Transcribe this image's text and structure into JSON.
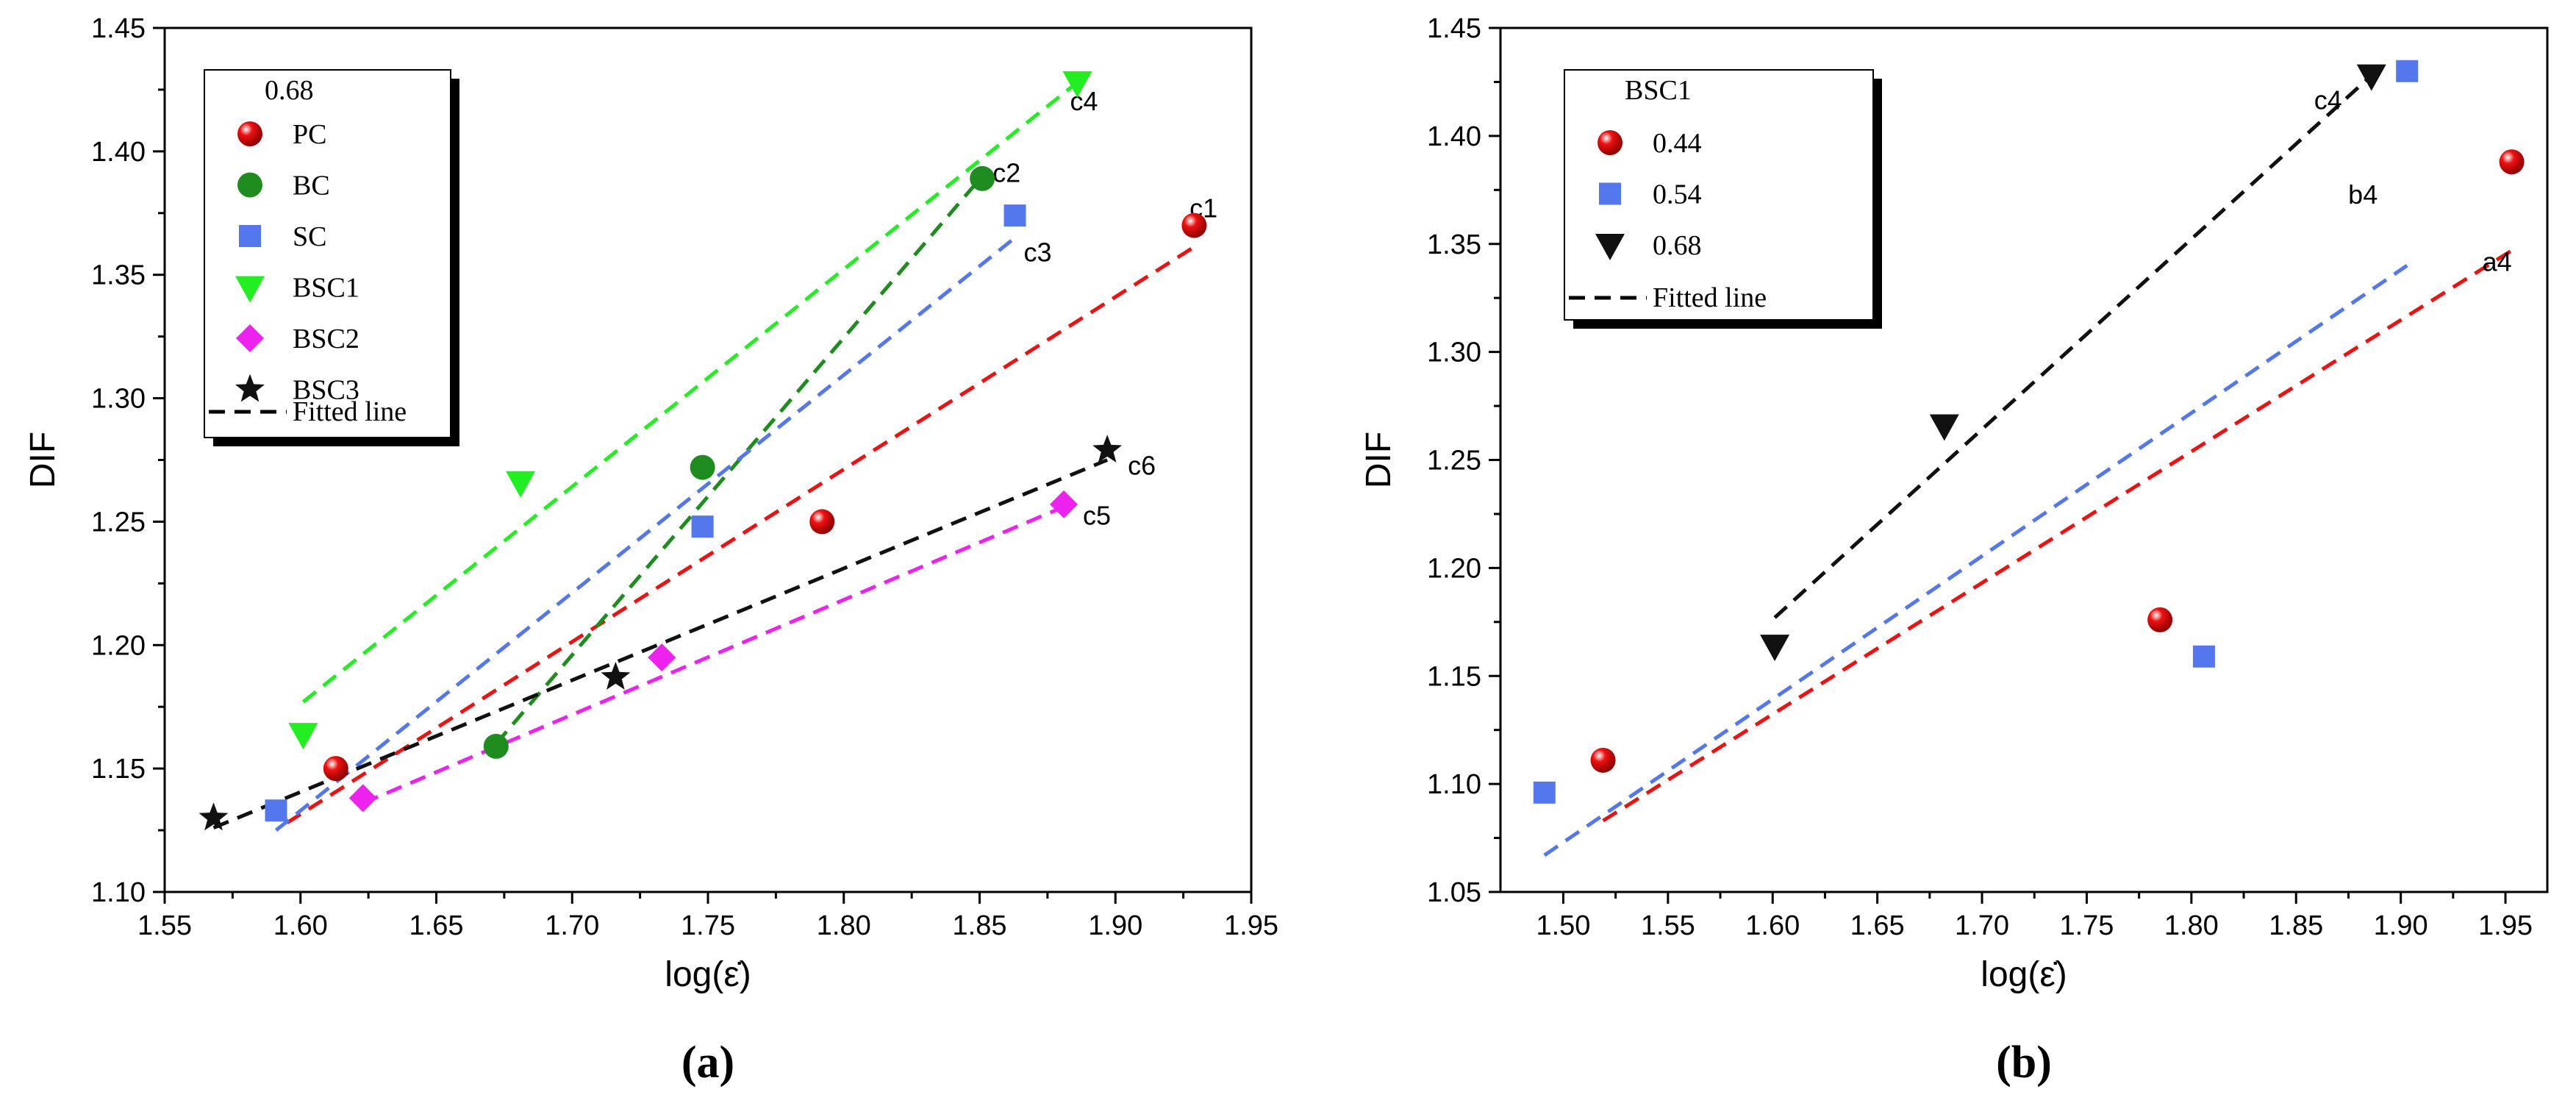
{
  "chart_data": [
    {
      "type": "scatter",
      "panel_label": "(a)",
      "xlabel": "log(ε̇)",
      "ylabel": "DIF",
      "xlim": [
        1.55,
        1.95
      ],
      "ylim": [
        1.1,
        1.45
      ],
      "xticks": [
        "1.55",
        "1.60",
        "1.65",
        "1.70",
        "1.75",
        "1.80",
        "1.85",
        "1.90",
        "1.95"
      ],
      "yticks": [
        "1.10",
        "1.15",
        "1.20",
        "1.25",
        "1.30",
        "1.35",
        "1.40",
        "1.45"
      ],
      "legend_title": "0.68",
      "legend_position": "top-left",
      "fitted_line_label": "Fitted line",
      "series": [
        {
          "name": "PC",
          "marker": "sphere",
          "color": "#ee1111",
          "points": [
            [
              1.613,
              1.15
            ],
            [
              1.792,
              1.25
            ],
            [
              1.929,
              1.37
            ]
          ],
          "fit": [
            [
              1.595,
              1.128
            ],
            [
              1.93,
              1.362
            ]
          ],
          "fit_label": "c1"
        },
        {
          "name": "BC",
          "marker": "circle",
          "color": "#1e8c1e",
          "points": [
            [
              1.672,
              1.159
            ],
            [
              1.748,
              1.272
            ],
            [
              1.851,
              1.389
            ]
          ],
          "fit": [
            [
              1.672,
              1.16
            ],
            [
              1.851,
              1.39
            ]
          ],
          "fit_label": "c2"
        },
        {
          "name": "SC",
          "marker": "square",
          "color": "#5577ee",
          "points": [
            [
              1.591,
              1.133
            ],
            [
              1.748,
              1.248
            ],
            [
              1.863,
              1.374
            ]
          ],
          "fit": [
            [
              1.591,
              1.125
            ],
            [
              1.863,
              1.365
            ]
          ],
          "fit_label": "c3"
        },
        {
          "name": "BSC1",
          "marker": "triangle-down",
          "color": "#22ee22",
          "points": [
            [
              1.601,
              1.164
            ],
            [
              1.681,
              1.266
            ],
            [
              1.886,
              1.428
            ]
          ],
          "fit": [
            [
              1.601,
              1.177
            ],
            [
              1.886,
              1.428
            ]
          ],
          "fit_label": "c4"
        },
        {
          "name": "BSC2",
          "marker": "diamond",
          "color": "#ee22ee",
          "points": [
            [
              1.623,
              1.138
            ],
            [
              1.733,
              1.195
            ],
            [
              1.881,
              1.257
            ]
          ],
          "fit": [
            [
              1.623,
              1.136
            ],
            [
              1.881,
              1.256
            ]
          ],
          "fit_label": "c5"
        },
        {
          "name": "BSC3",
          "marker": "star",
          "color": "#111111",
          "points": [
            [
              1.568,
              1.13
            ],
            [
              1.716,
              1.187
            ],
            [
              1.897,
              1.279
            ]
          ],
          "fit": [
            [
              1.568,
              1.126
            ],
            [
              1.897,
              1.275
            ]
          ],
          "fit_label": "c6"
        }
      ]
    },
    {
      "type": "scatter",
      "panel_label": "(b)",
      "xlabel": "log(ε̇)",
      "ylabel": "DIF",
      "xlim": [
        1.47,
        1.97
      ],
      "ylim": [
        1.05,
        1.45
      ],
      "xticks": [
        "1.50",
        "1.55",
        "1.60",
        "1.65",
        "1.70",
        "1.75",
        "1.80",
        "1.85",
        "1.90",
        "1.95"
      ],
      "yticks": [
        "1.05",
        "1.10",
        "1.15",
        "1.20",
        "1.25",
        "1.30",
        "1.35",
        "1.40",
        "1.45"
      ],
      "legend_title": "BSC1",
      "legend_position": "top-left",
      "fitted_line_label": "Fitted line",
      "series": [
        {
          "name": "0.44",
          "marker": "sphere",
          "color": "#ee1111",
          "points": [
            [
              1.519,
              1.111
            ],
            [
              1.785,
              1.176
            ],
            [
              1.953,
              1.388
            ]
          ],
          "fit": [
            [
              1.519,
              1.083
            ],
            [
              1.953,
              1.347
            ]
          ],
          "fit_label": "a4"
        },
        {
          "name": "0.54",
          "marker": "square",
          "color": "#5577ee",
          "points": [
            [
              1.491,
              1.096
            ],
            [
              1.806,
              1.159
            ],
            [
              1.903,
              1.43
            ]
          ],
          "fit": [
            [
              1.491,
              1.067
            ],
            [
              1.903,
              1.34
            ]
          ],
          "fit_label": "b4"
        },
        {
          "name": "0.68",
          "marker": "triangle-down",
          "color": "#111111",
          "points": [
            [
              1.601,
              1.164
            ],
            [
              1.682,
              1.266
            ],
            [
              1.886,
              1.428
            ]
          ],
          "fit": [
            [
              1.601,
              1.177
            ],
            [
              1.886,
              1.428
            ]
          ],
          "fit_label": "c4"
        }
      ]
    }
  ]
}
